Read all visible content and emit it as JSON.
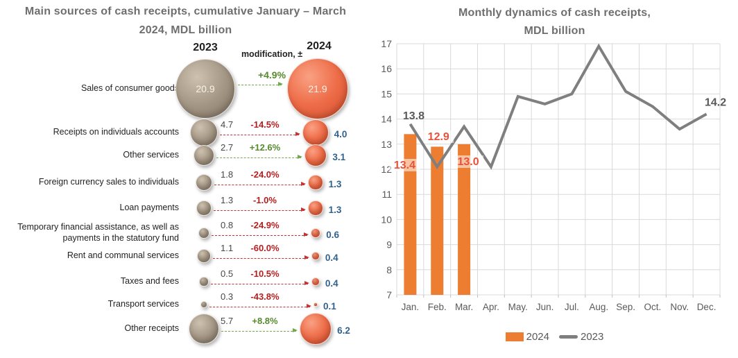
{
  "chart_data": [
    {
      "type": "bubble-comparison",
      "title": "Main sources of cash receipts, cumulative January – March 2024,  MDL billion",
      "title_lines": [
        "Main sources of cash receipts, cumulative January – March",
        "2024,  MDL billion"
      ],
      "columns": [
        "2023",
        "modification, ±",
        "2024"
      ],
      "unit": "MDL billion",
      "rows": [
        {
          "label": "Sales of consumer goods",
          "v2023": 20.9,
          "change": "+4.9%",
          "v2024": 21.9,
          "values_inside": true
        },
        {
          "label": "Receipts on individuals accounts",
          "v2023": 4.7,
          "change": "-14.5%",
          "v2024": 4.0
        },
        {
          "label": "Other services",
          "v2023": 2.7,
          "change": "+12.6%",
          "v2024": 3.1
        },
        {
          "label": "Foreign currency sales to individuals",
          "v2023": 1.8,
          "change": "-24.0%",
          "v2024": 1.3
        },
        {
          "label": "Loan payments",
          "v2023": 1.3,
          "change": "-1.0%",
          "v2024": 1.3
        },
        {
          "label": "Temporary financial assistance, as well as payments in the statutory fund",
          "v2023": 0.8,
          "change": "-24.9%",
          "v2024": 0.6
        },
        {
          "label": "Rent and communal services",
          "v2023": 1.1,
          "change": "-60.0%",
          "v2024": 0.4
        },
        {
          "label": "Taxes and fees",
          "v2023": 0.5,
          "change": "-10.5%",
          "v2024": 0.4
        },
        {
          "label": "Transport services",
          "v2023": 0.3,
          "change": "-43.8%",
          "v2024": 0.1
        },
        {
          "label": "Other receipts",
          "v2023": 5.7,
          "change": "+8.8%",
          "v2024": 6.2
        }
      ],
      "colors": {
        "bubble_2023": "#a79987",
        "bubble_2024": "#ee6c48",
        "positive": "#568a2d",
        "negative": "#b51f1f",
        "value_2023_text": "#474747",
        "value_2024_text": "#31618e"
      }
    },
    {
      "type": "bar+line",
      "title": "Monthly dynamics of cash receipts, MDL billion",
      "title_lines": [
        "Monthly dynamics of cash receipts,",
        "MDL billion"
      ],
      "categories": [
        "Jan.",
        "Feb.",
        "Mar.",
        "Apr.",
        "May.",
        "Jun.",
        "Jul.",
        "Aug.",
        "Sep.",
        "Oct.",
        "Nov.",
        "Dec."
      ],
      "series": [
        {
          "name": "2024",
          "type": "bar",
          "color": "#ed7d31",
          "values": [
            13.4,
            12.9,
            13.0,
            null,
            null,
            null,
            null,
            null,
            null,
            null,
            null,
            null
          ],
          "data_labels": [
            "13.4",
            "12.9",
            "13.0"
          ],
          "data_label_color": "#e8503a"
        },
        {
          "name": "2023",
          "type": "line",
          "color": "#7f7f7f",
          "values": [
            13.8,
            12.1,
            13.7,
            12.1,
            14.9,
            14.6,
            15.0,
            16.9,
            15.1,
            14.5,
            13.6,
            14.2
          ],
          "shown_labels": [
            {
              "index": 0,
              "text": "13.8"
            },
            {
              "index": 11,
              "text": "14.2"
            }
          ],
          "data_label_color": "#595959"
        }
      ],
      "ylim": [
        7,
        17
      ],
      "yticks": [
        7,
        8,
        9,
        10,
        11,
        12,
        13,
        14,
        15,
        16,
        17
      ],
      "grid": true,
      "legend_position": "bottom",
      "colors": {
        "grid": "#d9d9d9",
        "axis_text": "#595959"
      }
    }
  ]
}
